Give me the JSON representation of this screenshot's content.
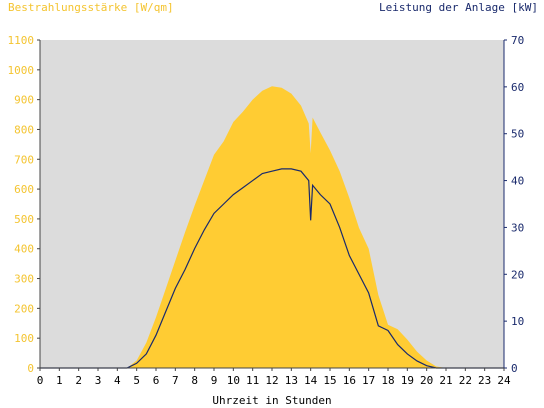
{
  "chart_data": {
    "type": "area",
    "ylabel_left": "Bestrahlungsstärke [W/qm]",
    "ylabel_right": "Leistung der Anlage [kW]",
    "xlabel": "Uhrzeit in Stunden",
    "xlim": [
      0,
      24
    ],
    "ylim_left": [
      0,
      1100
    ],
    "ylim_right": [
      0,
      70
    ],
    "xticks": [
      "0",
      "1",
      "2",
      "3",
      "4",
      "5",
      "6",
      "7",
      "8",
      "9",
      "10",
      "11",
      "12",
      "13",
      "14",
      "15",
      "16",
      "17",
      "18",
      "19",
      "20",
      "21",
      "22",
      "23",
      "24"
    ],
    "yticks_left": [
      "0",
      "100",
      "200",
      "300",
      "400",
      "500",
      "600",
      "700",
      "800",
      "900",
      "1000",
      "1100"
    ],
    "yticks_right": [
      "0",
      "10",
      "20",
      "30",
      "40",
      "50",
      "60",
      "70"
    ],
    "colors": {
      "irradiance": "#ffcc33",
      "power": "#1a2a6c",
      "plot_bg": "#dcdcdc"
    },
    "series": [
      {
        "name": "Bestrahlungsstärke [W/qm]",
        "axis": "left",
        "x": [
          0,
          4.5,
          5.0,
          5.5,
          6.0,
          6.5,
          7.0,
          7.5,
          8.0,
          8.5,
          9.0,
          9.5,
          10.0,
          10.5,
          11.0,
          11.5,
          12.0,
          12.5,
          13.0,
          13.5,
          13.9,
          14.0,
          14.1,
          14.5,
          15.0,
          15.5,
          16.0,
          16.5,
          17.0,
          17.5,
          18.0,
          18.5,
          19.0,
          19.5,
          20.0,
          20.5,
          21.0,
          24.0
        ],
        "values": [
          0,
          0,
          25,
          85,
          170,
          265,
          360,
          455,
          545,
          630,
          715,
          760,
          825,
          860,
          900,
          930,
          945,
          940,
          920,
          880,
          820,
          720,
          840,
          790,
          730,
          660,
          570,
          470,
          400,
          245,
          145,
          130,
          95,
          55,
          25,
          5,
          0,
          0
        ]
      },
      {
        "name": "Leistung der Anlage [kW]",
        "axis": "right",
        "x": [
          0,
          4.5,
          5.0,
          5.5,
          6.0,
          6.5,
          7.0,
          7.5,
          8.0,
          8.5,
          9.0,
          9.5,
          10.0,
          10.5,
          11.0,
          11.5,
          12.0,
          12.5,
          13.0,
          13.5,
          13.9,
          14.0,
          14.1,
          14.5,
          15.0,
          15.5,
          16.0,
          16.5,
          17.0,
          17.5,
          18.0,
          18.5,
          19.0,
          19.5,
          20.0,
          20.5,
          21.0,
          24.0
        ],
        "values": [
          0,
          0,
          1,
          3,
          7,
          12,
          17,
          21,
          25.5,
          29.5,
          33,
          35,
          37,
          38.5,
          40,
          41.5,
          42,
          42.5,
          42.5,
          42,
          40,
          31.5,
          39,
          37,
          35,
          30,
          24,
          20,
          16,
          9,
          8,
          5,
          3,
          1.5,
          0.5,
          0,
          0,
          0
        ]
      }
    ]
  }
}
